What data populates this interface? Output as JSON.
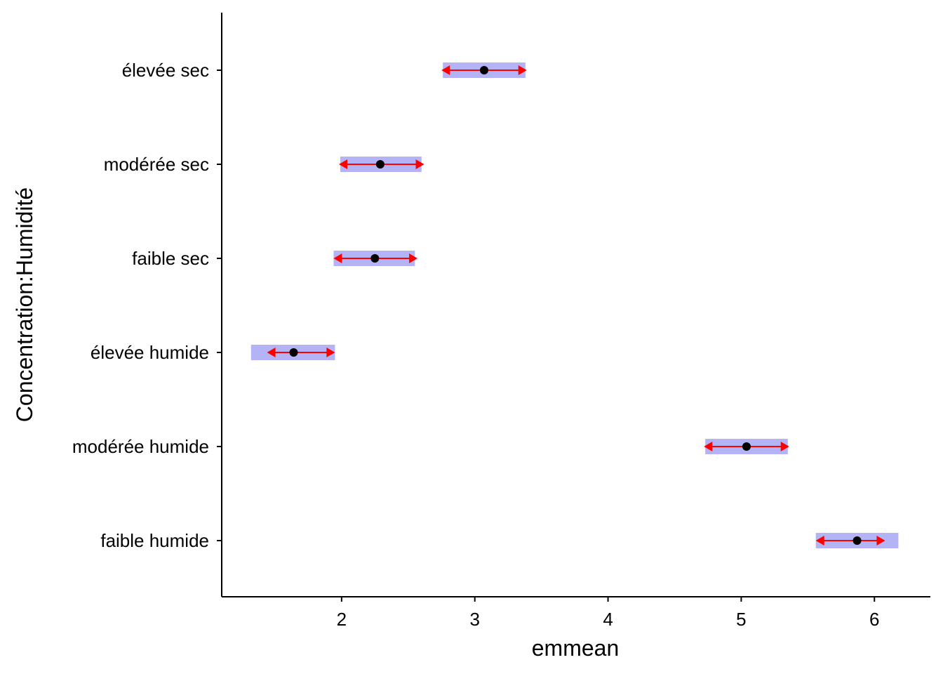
{
  "chart_data": {
    "type": "interval",
    "xlabel": "emmean",
    "ylabel": "Concentration:Humidité",
    "xlim": [
      1.1,
      6.42
    ],
    "xticks": [
      2,
      3,
      4,
      5,
      6
    ],
    "colors": {
      "ci_band": "#b3b3f5",
      "comparison_arrow": "#ff0000",
      "point": "#000000"
    },
    "categories": [
      "élevée sec",
      "modérée sec",
      "faible sec",
      "élevée humide",
      "modérée humide",
      "faible humide"
    ],
    "emmean": [
      3.07,
      2.29,
      2.25,
      1.64,
      5.04,
      5.87
    ],
    "lower_CL": [
      2.76,
      1.99,
      1.94,
      1.32,
      4.73,
      5.56
    ],
    "upper_CL": [
      3.38,
      2.6,
      2.55,
      1.95,
      5.35,
      6.18
    ],
    "arrow_lower": [
      2.75,
      1.98,
      1.94,
      1.44,
      4.72,
      5.56
    ],
    "arrow_upper": [
      3.39,
      2.62,
      2.57,
      1.95,
      5.36,
      6.08
    ]
  }
}
